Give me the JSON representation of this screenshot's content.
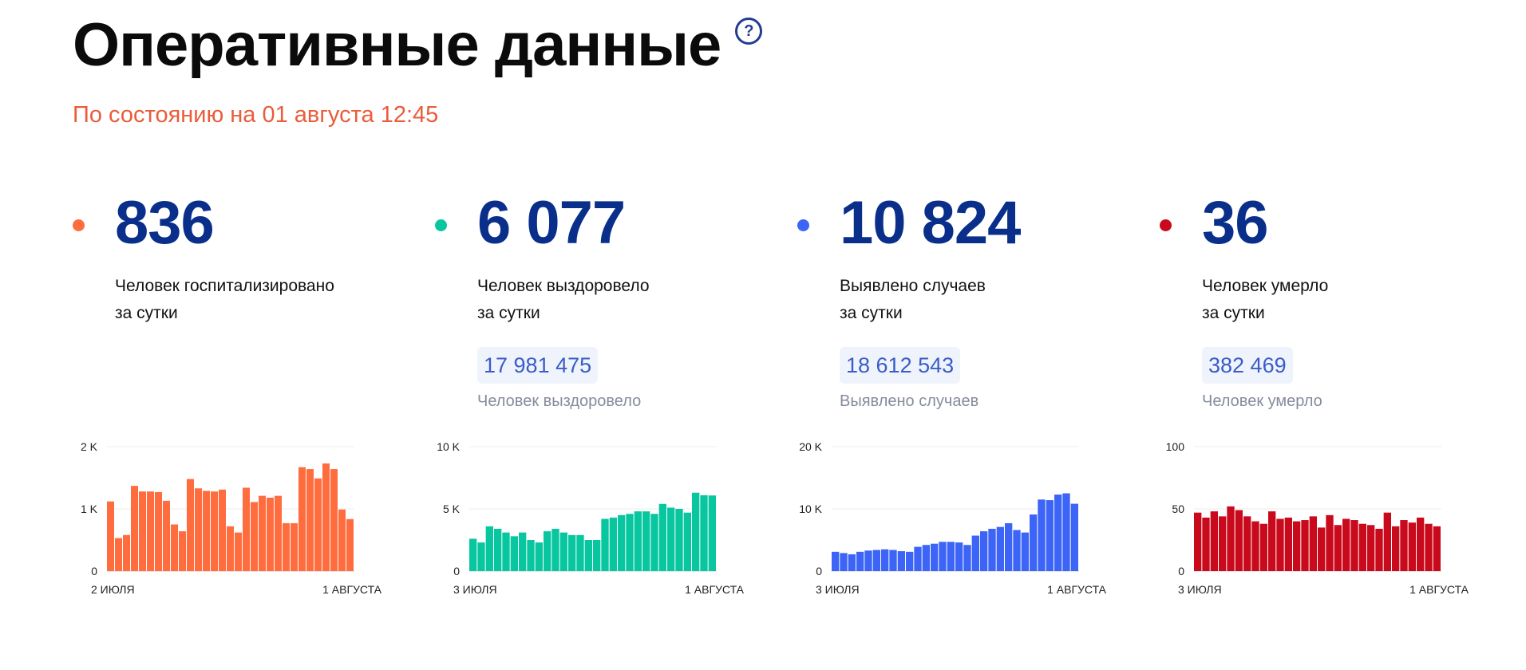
{
  "header": {
    "title": "Оперативные данные",
    "help_icon_text": "?",
    "subtitle": "По состоянию на 01 августа 12:45"
  },
  "cards": [
    {
      "id": "hospitalized",
      "color": "#ff6d3e",
      "value": "836",
      "desc_line1": "Человек госпитализировано",
      "desc_line2": "за сутки",
      "total": "",
      "total_label": ""
    },
    {
      "id": "recovered",
      "color": "#08c7a0",
      "value": "6 077",
      "desc_line1": "Человек выздоровело",
      "desc_line2": "за сутки",
      "total": "17 981 475",
      "total_label": "Человек выздоровело"
    },
    {
      "id": "cases",
      "color": "#3c64f6",
      "value": "10 824",
      "desc_line1": "Выявлено случаев",
      "desc_line2": "за сутки",
      "total": "18 612 543",
      "total_label": "Выявлено случаев"
    },
    {
      "id": "deaths",
      "color": "#c90a1c",
      "value": "36",
      "desc_line1": "Человек умерло",
      "desc_line2": "за сутки",
      "total": "382 469",
      "total_label": "Человек умерло"
    }
  ],
  "chart_data": [
    {
      "type": "bar",
      "ylim": [
        0,
        2000
      ],
      "yticks": [
        0,
        1000,
        2000
      ],
      "ytick_labels": [
        "0",
        "1 K",
        "2 K"
      ],
      "x_start_label": "2 ИЮЛЯ",
      "x_end_label": "1 АВГУСТА",
      "grid": true,
      "values": [
        1120,
        530,
        580,
        1370,
        1280,
        1280,
        1270,
        1130,
        750,
        640,
        1480,
        1330,
        1290,
        1280,
        1310,
        720,
        620,
        1340,
        1110,
        1210,
        1180,
        1210,
        770,
        770,
        1670,
        1640,
        1490,
        1730,
        1640,
        990,
        836
      ]
    },
    {
      "type": "bar",
      "ylim": [
        0,
        10000
      ],
      "yticks": [
        0,
        5000,
        10000
      ],
      "ytick_labels": [
        "0",
        "5 K",
        "10 K"
      ],
      "x_start_label": "3 ИЮЛЯ",
      "x_end_label": "1 АВГУСТА",
      "grid": true,
      "values": [
        2600,
        2300,
        3600,
        3400,
        3100,
        2800,
        3100,
        2500,
        2300,
        3200,
        3400,
        3100,
        2900,
        2900,
        2500,
        2500,
        4200,
        4300,
        4500,
        4600,
        4800,
        4800,
        4600,
        5400,
        5100,
        5000,
        4700,
        6300,
        6100,
        6077
      ]
    },
    {
      "type": "bar",
      "ylim": [
        0,
        20000
      ],
      "yticks": [
        0,
        10000,
        20000
      ],
      "ytick_labels": [
        "0",
        "10 K",
        "20 K"
      ],
      "x_start_label": "3 ИЮЛЯ",
      "x_end_label": "1 АВГУСТА",
      "grid": true,
      "values": [
        3100,
        2900,
        2700,
        3100,
        3300,
        3400,
        3500,
        3400,
        3200,
        3100,
        3900,
        4200,
        4400,
        4700,
        4700,
        4600,
        4200,
        5700,
        6400,
        6800,
        7100,
        7700,
        6600,
        6200,
        9100,
        11500,
        11400,
        12300,
        12500,
        10824
      ]
    },
    {
      "type": "bar",
      "ylim": [
        0,
        100
      ],
      "yticks": [
        0,
        50,
        100
      ],
      "ytick_labels": [
        "0",
        "50",
        "100"
      ],
      "x_start_label": "3 ИЮЛЯ",
      "x_end_label": "1 АВГУСТА",
      "grid": true,
      "values": [
        47,
        43,
        48,
        44,
        52,
        49,
        44,
        40,
        38,
        48,
        42,
        43,
        40,
        41,
        44,
        35,
        45,
        37,
        42,
        41,
        38,
        37,
        34,
        47,
        36,
        41,
        39,
        43,
        38,
        36
      ]
    }
  ]
}
